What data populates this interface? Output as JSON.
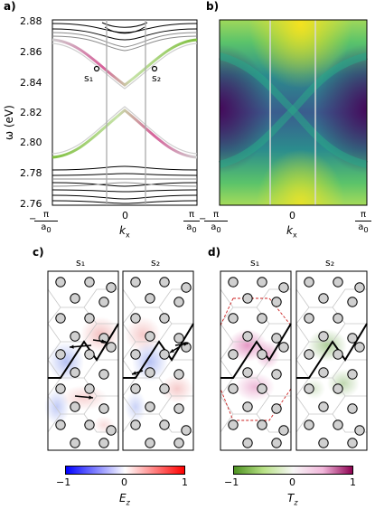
{
  "panels": {
    "a": "a)",
    "b": "b)",
    "c": "c)",
    "d": "d)"
  },
  "chart_data": [
    {
      "type": "line",
      "panel": "a",
      "ylabel": "ω (eV)",
      "xlabel": "k_x",
      "ylim": [
        2.76,
        2.88
      ],
      "y_ticks": [
        "2.76",
        "2.78",
        "2.80",
        "2.82",
        "2.84",
        "2.86",
        "2.88"
      ],
      "x_ticks": [
        "−π/a₀",
        "0",
        "π/a₀"
      ],
      "markers": [
        {
          "label": "s₁",
          "x": -0.45,
          "y": 2.849
        },
        {
          "label": "s₂",
          "x": 0.45,
          "y": 2.849
        }
      ],
      "vertical_lines_x": [
        -0.29,
        0.29
      ]
    },
    {
      "type": "heatmap",
      "panel": "b",
      "xlabel": "k_x",
      "x_ticks": [
        "−π/a₀",
        "0",
        "π/a₀"
      ],
      "colormap": "viridis",
      "vertical_lines_x": [
        -0.29,
        0.29
      ]
    }
  ],
  "panel_c": {
    "titles": [
      "s₁",
      "s₂"
    ],
    "colorbar": {
      "label": "E_z",
      "ticks": [
        "−1",
        "0",
        "1"
      ],
      "low": "#0000ff",
      "mid": "#ffffff",
      "high": "#ff0000"
    }
  },
  "panel_d": {
    "titles": [
      "s₁",
      "s₂"
    ],
    "colorbar": {
      "label": "T_z",
      "ticks": [
        "−1",
        "0",
        "1"
      ],
      "low": "#4d9221",
      "mid": "#f7f7f7",
      "high": "#c51b7d"
    }
  },
  "colors": {
    "pink_band": "#d6609a",
    "green_band": "#7fbf3f",
    "gray_line": "#9a9a9a"
  }
}
